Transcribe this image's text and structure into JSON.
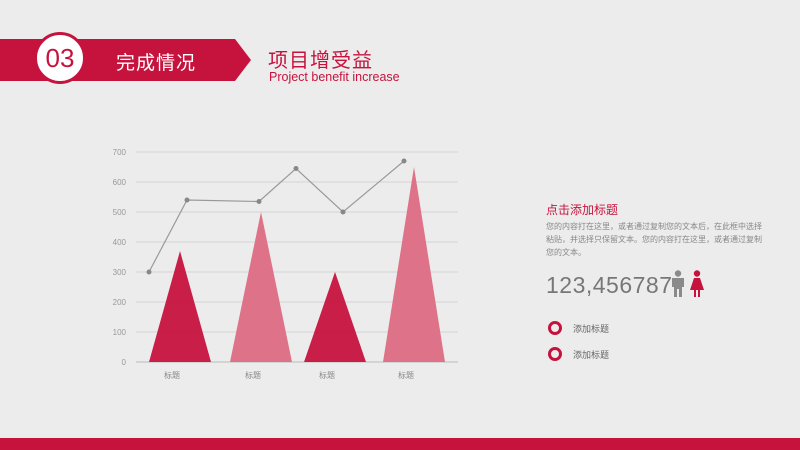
{
  "header": {
    "section_number": "03",
    "section_label": "完成情况",
    "title": "项目增受益",
    "subtitle": "Project benefit increase"
  },
  "side": {
    "title": "点击添加标题",
    "description": "您的内容打在这里，或者通过复制您的文本后，在此框中选择粘贴，并选择只保留文本。您的内容打在这里，或者通过复制您的文本。",
    "number": "123,456787",
    "options": [
      {
        "label": "添加标题"
      },
      {
        "label": "添加标题"
      }
    ]
  },
  "colors": {
    "accent": "#c6133e",
    "accent_light": "#dd6b83",
    "line": "#999999",
    "male_icon": "#8a8a8a"
  },
  "icons": [
    "male-person-icon",
    "female-person-icon"
  ],
  "chart_data": {
    "type": "bar",
    "title": "",
    "xlabel": "",
    "ylabel": "",
    "ylim": [
      0,
      700
    ],
    "yticks": [
      0,
      100,
      200,
      300,
      400,
      500,
      600,
      700
    ],
    "categories": [
      "标题",
      "标题",
      "标题",
      "标题"
    ],
    "series": [
      {
        "values": [
          370,
          500,
          300,
          650
        ]
      }
    ],
    "line_values": [
      300,
      540,
      535,
      645,
      500,
      670
    ],
    "grid": true
  }
}
